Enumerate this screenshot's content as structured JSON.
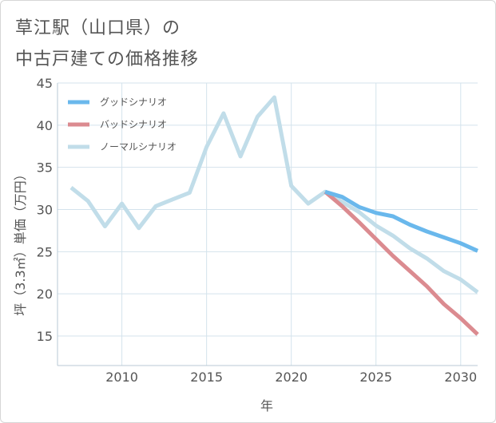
{
  "chart_data": {
    "type": "line",
    "title": [
      "草江駅（山口県）の",
      "中古戸建ての価格推移"
    ],
    "xlabel": "年",
    "ylabel": "坪（3.3㎡）単価（万円）",
    "xlim": [
      2006.2,
      2031
    ],
    "ylim": [
      11.5,
      45
    ],
    "xticks": [
      2010,
      2015,
      2020,
      2025,
      2030
    ],
    "yticks": [
      15,
      20,
      25,
      30,
      35,
      40,
      45
    ],
    "grid": true,
    "legend_position": "top-left",
    "series": [
      {
        "name": "グッドシナリオ",
        "color": "#6ab8ec",
        "x": [
          2022,
          2023,
          2024,
          2025,
          2026,
          2027,
          2028,
          2029,
          2030,
          2031
        ],
        "values": [
          32.1,
          31.5,
          30.3,
          29.6,
          29.2,
          28.2,
          27.4,
          26.7,
          26.0,
          25.1
        ]
      },
      {
        "name": "バッドシナリオ",
        "color": "#db8b90",
        "x": [
          2022,
          2023,
          2024,
          2025,
          2026,
          2027,
          2028,
          2029,
          2030,
          2031
        ],
        "values": [
          32.1,
          30.4,
          28.5,
          26.5,
          24.5,
          22.7,
          20.9,
          18.8,
          17.1,
          15.2
        ]
      },
      {
        "name": "ノーマルシナリオ",
        "color": "#c1dde9",
        "x": [
          2007,
          2008,
          2009,
          2010,
          2011,
          2012,
          2013,
          2014,
          2015,
          2016,
          2017,
          2018,
          2019,
          2020,
          2021,
          2022,
          2023,
          2024,
          2025,
          2026,
          2027,
          2028,
          2029,
          2030,
          2031
        ],
        "values": [
          32.6,
          31.0,
          28.0,
          30.7,
          27.8,
          30.4,
          31.2,
          32.0,
          37.4,
          41.4,
          36.3,
          41.0,
          43.3,
          32.8,
          30.7,
          32.1,
          30.9,
          29.7,
          28.1,
          26.9,
          25.4,
          24.2,
          22.7,
          21.7,
          20.2
        ]
      }
    ]
  }
}
